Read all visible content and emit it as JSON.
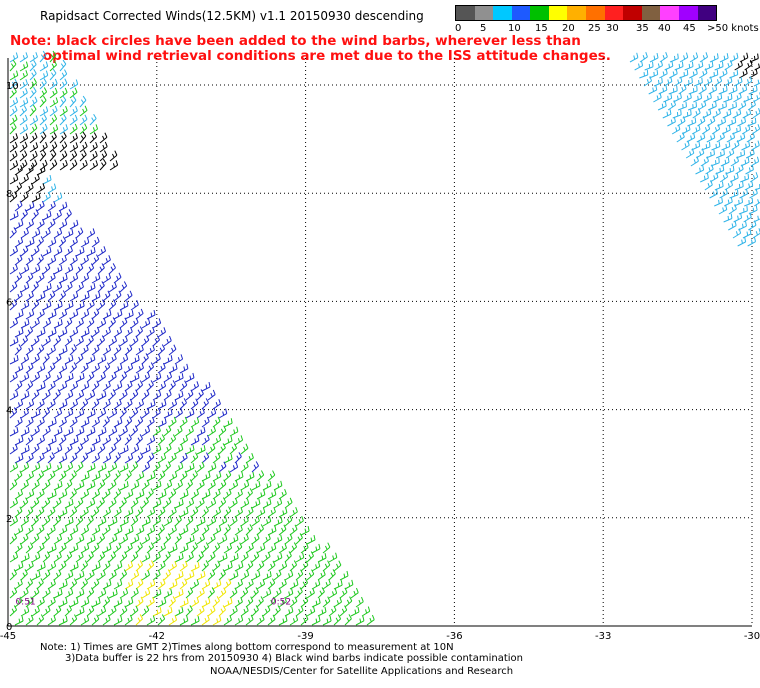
{
  "header": {
    "title": "Rapidsact Corrected Winds(12.5KM) v1.1 20150930 descending",
    "note": "Note: black circles have been added to the wind barbs, wherever less than\n       optimal wind retrieval conditions are met due to the ISS attitude changes."
  },
  "legend": {
    "colors": [
      "#555555",
      "#909090",
      "#00c8ff",
      "#1e5aff",
      "#00c000",
      "#ffff00",
      "#ffb000",
      "#ff7000",
      "#ff2020",
      "#c00000",
      "#806040",
      "#ff40ff",
      "#a000ff",
      "#400080"
    ],
    "labels": [
      "0",
      "5",
      "10",
      "15",
      "20",
      "25",
      "30",
      "35",
      "40",
      "45",
      ">50 knots"
    ]
  },
  "map": {
    "lon_ticks": [
      "-45",
      "-42",
      "-39",
      "-36",
      "-33",
      "-30"
    ],
    "lat_ticks": [
      "0",
      "2",
      "4",
      "6",
      "8",
      "10"
    ],
    "lon_range": [
      -45,
      -30
    ],
    "lat_range": [
      0,
      10.5
    ],
    "time_labels": [
      "0:51",
      "0:52"
    ],
    "colors": {
      "blue": "#1e28c8",
      "lightblue": "#30b4e8",
      "green": "#1ec81e",
      "yellow": "#f0e600",
      "black": "#000000",
      "purple": "#800080"
    }
  },
  "footer": {
    "line1": "Note: 1) Times are GMT 2)Times along bottom correspond to measurement at 10N",
    "line2": "3)Data buffer is 22 hrs from 20150930 4) Black wind barbs indicate possible contamination",
    "line3": "NOAA/NESDIS/Center for Satellite Applications and Research"
  }
}
